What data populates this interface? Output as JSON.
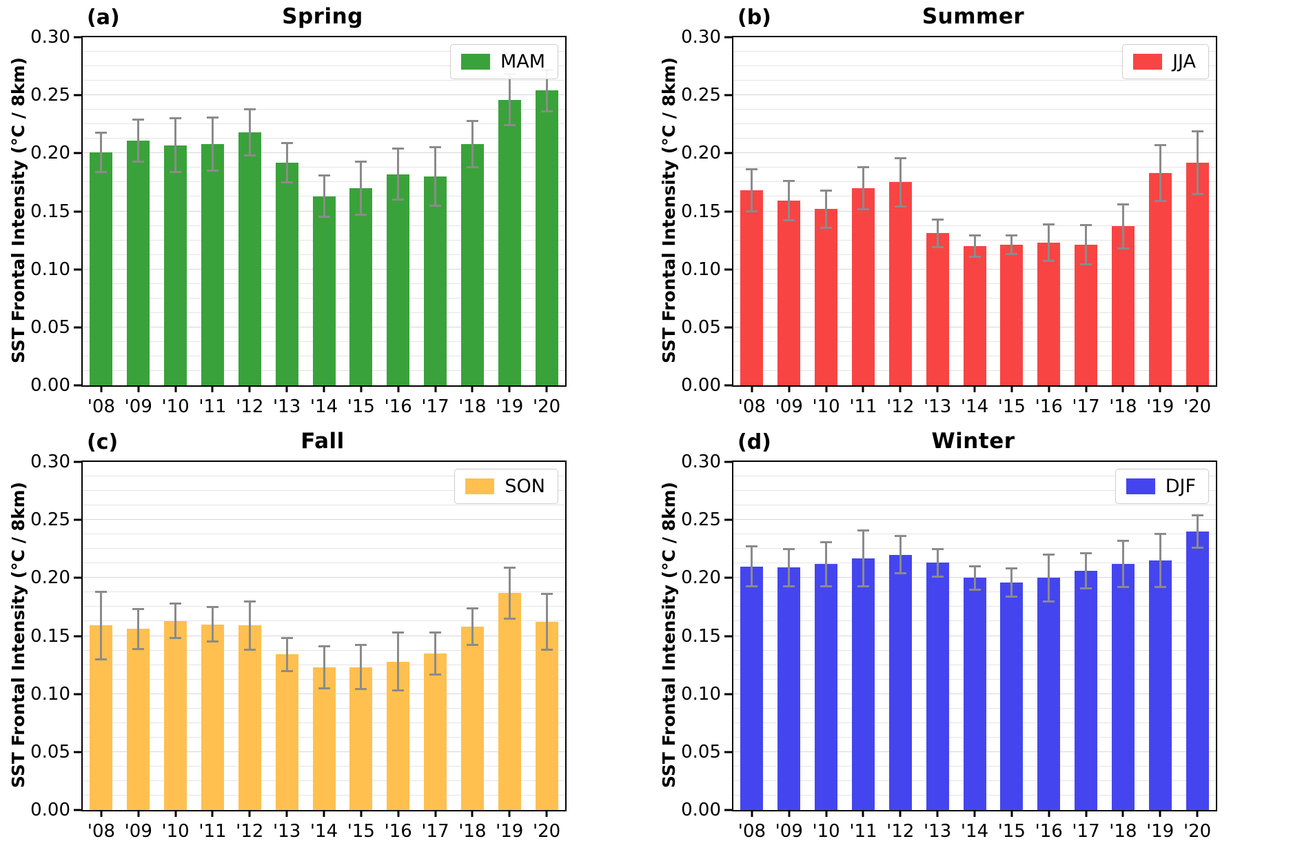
{
  "chart_data": [
    {
      "type": "bar",
      "panel_label": "(a)",
      "title": "Spring",
      "legend": "MAM",
      "legend_position": "upper right",
      "color": "#3aa23a",
      "errorbar_color": "#8b8b8b",
      "ylabel": "SST Frontal Intensity (°C / 8km)",
      "ylim": [
        0,
        0.3
      ],
      "grid": true,
      "grid_step": 0.0125,
      "yticks": [
        0,
        0.05,
        0.1,
        0.15,
        0.2,
        0.25,
        0.3
      ],
      "ytick_labels": [
        "0.00",
        "0.05",
        "0.10",
        "0.15",
        "0.20",
        "0.25",
        "0.30"
      ],
      "categories": [
        "'08",
        "'09",
        "'10",
        "'11",
        "'12",
        "'13",
        "'14",
        "'15",
        "'16",
        "'17",
        "'18",
        "'19",
        "'20"
      ],
      "values": [
        0.201,
        0.211,
        0.207,
        0.208,
        0.218,
        0.192,
        0.163,
        0.17,
        0.182,
        0.18,
        0.208,
        0.246,
        0.254
      ],
      "errors": [
        0.017,
        0.018,
        0.023,
        0.023,
        0.02,
        0.017,
        0.018,
        0.023,
        0.022,
        0.025,
        0.02,
        0.022,
        0.018
      ]
    },
    {
      "type": "bar",
      "panel_label": "(b)",
      "title": "Summer",
      "legend": "JJA",
      "legend_position": "upper right",
      "color": "#f94444",
      "errorbar_color": "#8b8b8b",
      "ylabel": "SST Frontal Intensity (°C / 8km)",
      "ylim": [
        0,
        0.3
      ],
      "grid": true,
      "grid_step": 0.0125,
      "yticks": [
        0,
        0.05,
        0.1,
        0.15,
        0.2,
        0.25,
        0.3
      ],
      "ytick_labels": [
        "0.00",
        "0.05",
        "0.10",
        "0.15",
        "0.20",
        "0.25",
        "0.30"
      ],
      "categories": [
        "'08",
        "'09",
        "'10",
        "'11",
        "'12",
        "'13",
        "'14",
        "'15",
        "'16",
        "'17",
        "'18",
        "'19",
        "'20"
      ],
      "values": [
        0.168,
        0.159,
        0.152,
        0.17,
        0.175,
        0.131,
        0.12,
        0.121,
        0.123,
        0.121,
        0.137,
        0.183,
        0.192
      ],
      "errors": [
        0.018,
        0.017,
        0.016,
        0.018,
        0.021,
        0.012,
        0.009,
        0.008,
        0.016,
        0.017,
        0.019,
        0.024,
        0.027
      ]
    },
    {
      "type": "bar",
      "panel_label": "(c)",
      "title": "Fall",
      "legend": "SON",
      "legend_position": "upper right",
      "color": "#ffc04f",
      "errorbar_color": "#8b8b8b",
      "ylabel": "SST Frontal Intensity (°C / 8km)",
      "ylim": [
        0,
        0.3
      ],
      "grid": true,
      "grid_step": 0.0125,
      "yticks": [
        0,
        0.05,
        0.1,
        0.15,
        0.2,
        0.25,
        0.3
      ],
      "ytick_labels": [
        "0.00",
        "0.05",
        "0.10",
        "0.15",
        "0.20",
        "0.25",
        "0.30"
      ],
      "categories": [
        "'08",
        "'09",
        "'10",
        "'11",
        "'12",
        "'13",
        "'14",
        "'15",
        "'16",
        "'17",
        "'18",
        "'19",
        "'20"
      ],
      "values": [
        0.159,
        0.156,
        0.163,
        0.16,
        0.159,
        0.134,
        0.123,
        0.123,
        0.128,
        0.135,
        0.158,
        0.187,
        0.162
      ],
      "errors": [
        0.029,
        0.017,
        0.015,
        0.015,
        0.021,
        0.014,
        0.018,
        0.019,
        0.025,
        0.018,
        0.016,
        0.022,
        0.024
      ]
    },
    {
      "type": "bar",
      "panel_label": "(d)",
      "title": "Winter",
      "legend": "DJF",
      "legend_position": "upper right",
      "color": "#4545ef",
      "errorbar_color": "#8b8b8b",
      "ylabel": "SST Frontal Intensity (°C / 8km)",
      "ylim": [
        0,
        0.3
      ],
      "grid": true,
      "grid_step": 0.0125,
      "yticks": [
        0,
        0.05,
        0.1,
        0.15,
        0.2,
        0.25,
        0.3
      ],
      "ytick_labels": [
        "0.00",
        "0.05",
        "0.10",
        "0.15",
        "0.20",
        "0.25",
        "0.30"
      ],
      "categories": [
        "'08",
        "'09",
        "'10",
        "'11",
        "'12",
        "'13",
        "'14",
        "'15",
        "'16",
        "'17",
        "'18",
        "'19",
        "'20"
      ],
      "values": [
        0.21,
        0.209,
        0.212,
        0.217,
        0.22,
        0.213,
        0.2,
        0.196,
        0.2,
        0.206,
        0.212,
        0.215,
        0.24
      ],
      "errors": [
        0.017,
        0.016,
        0.019,
        0.024,
        0.016,
        0.012,
        0.01,
        0.012,
        0.02,
        0.015,
        0.02,
        0.023,
        0.014
      ]
    }
  ]
}
